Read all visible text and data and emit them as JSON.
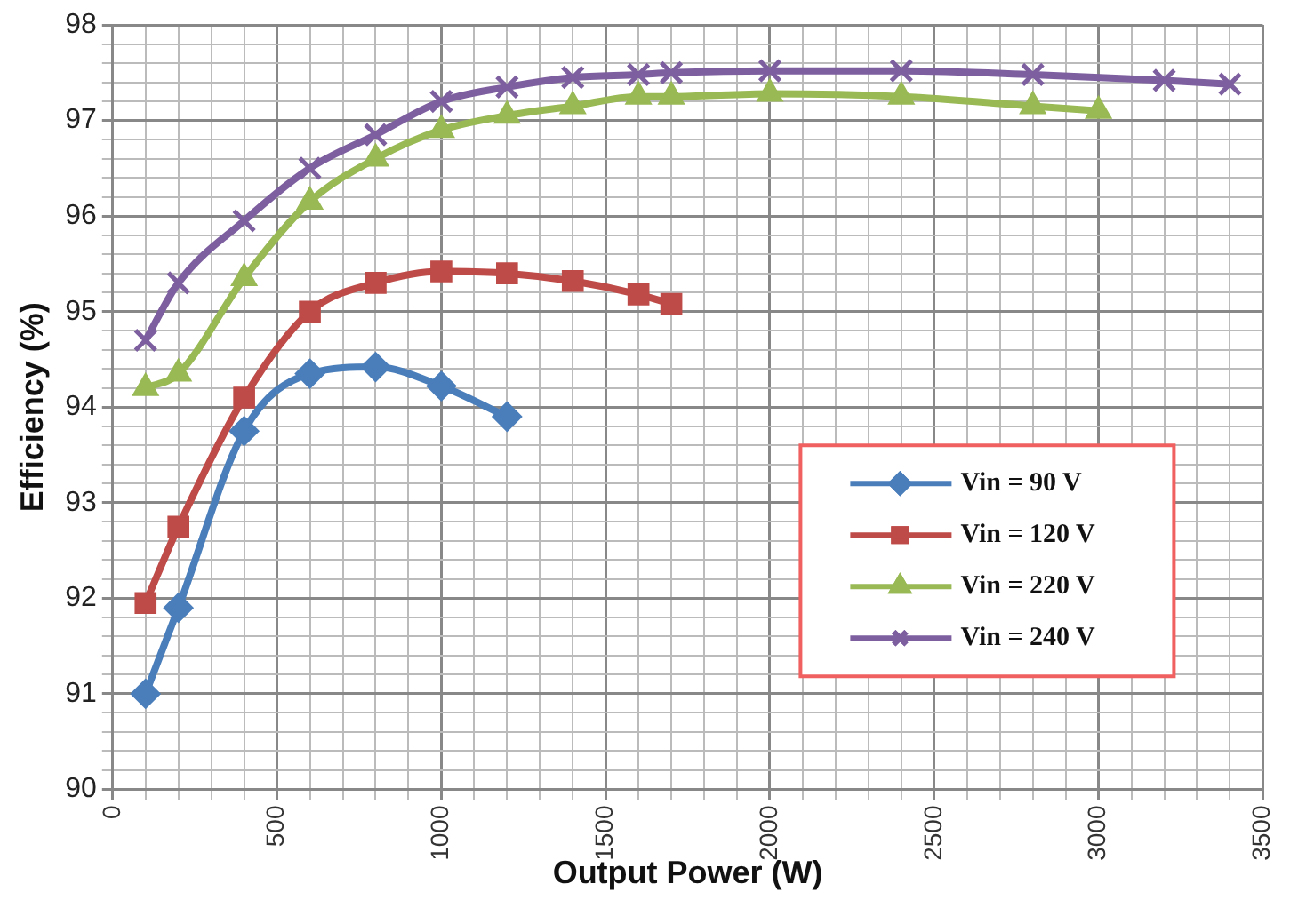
{
  "chart_data": {
    "type": "line",
    "xlabel": "Output Power (W)",
    "ylabel": "Efficiency (%)",
    "xlim": [
      0,
      3500
    ],
    "xticks": [
      0,
      {
        "value": 100,
        "label": null
      },
      {
        "value": 200,
        "label": null
      },
      {
        "value": 300,
        "label": null
      },
      {
        "value": 400,
        "label": null
      },
      500,
      {
        "value": 600,
        "label": null
      },
      {
        "value": 700,
        "label": null
      },
      {
        "value": 800,
        "label": null
      },
      {
        "value": 900,
        "label": null
      },
      1000,
      {
        "value": 1100,
        "label": null
      },
      {
        "value": 1200,
        "label": null
      },
      {
        "value": 1300,
        "label": null
      },
      {
        "value": 1400,
        "label": null
      },
      1500,
      {
        "value": 1600,
        "label": null
      },
      {
        "value": 1700,
        "label": null
      },
      {
        "value": 1800,
        "label": null
      },
      {
        "value": 1900,
        "label": null
      },
      2000,
      {
        "value": 2100,
        "label": null
      },
      {
        "value": 2200,
        "label": null
      },
      {
        "value": 2300,
        "label": null
      },
      {
        "value": 2400,
        "label": null
      },
      2500,
      {
        "value": 2600,
        "label": null
      },
      {
        "value": 2700,
        "label": null
      },
      {
        "value": 2800,
        "label": null
      },
      {
        "value": 2900,
        "label": null
      },
      3000,
      {
        "value": 3100,
        "label": null
      },
      {
        "value": 3200,
        "label": null
      },
      {
        "value": 3300,
        "label": null
      },
      {
        "value": 3400,
        "label": null
      },
      3500
    ],
    "ylim": [
      90,
      98
    ],
    "yticks": [
      90,
      {
        "value": 90.2,
        "label": null
      },
      {
        "value": 90.4,
        "label": null
      },
      {
        "value": 90.6,
        "label": null
      },
      {
        "value": 90.8,
        "label": null
      },
      91,
      {
        "value": 91.2,
        "label": null
      },
      {
        "value": 91.4,
        "label": null
      },
      {
        "value": 91.6,
        "label": null
      },
      {
        "value": 91.8,
        "label": null
      },
      92,
      {
        "value": 92.2,
        "label": null
      },
      {
        "value": 92.4,
        "label": null
      },
      {
        "value": 92.6,
        "label": null
      },
      {
        "value": 92.8,
        "label": null
      },
      93,
      {
        "value": 93.2,
        "label": null
      },
      {
        "value": 93.4,
        "label": null
      },
      {
        "value": 93.6,
        "label": null
      },
      {
        "value": 93.8,
        "label": null
      },
      94,
      {
        "value": 94.2,
        "label": null
      },
      {
        "value": 94.4,
        "label": null
      },
      {
        "value": 94.6,
        "label": null
      },
      {
        "value": 94.8,
        "label": null
      },
      95,
      {
        "value": 95.2,
        "label": null
      },
      {
        "value": 95.4,
        "label": null
      },
      {
        "value": 95.6,
        "label": null
      },
      {
        "value": 95.8,
        "label": null
      },
      96,
      {
        "value": 96.2,
        "label": null
      },
      {
        "value": 96.4,
        "label": null
      },
      {
        "value": 96.6,
        "label": null
      },
      {
        "value": 96.8,
        "label": null
      },
      97,
      {
        "value": 97.2,
        "label": null
      },
      {
        "value": 97.4,
        "label": null
      },
      {
        "value": 97.6,
        "label": null
      },
      {
        "value": 97.8,
        "label": null
      },
      98
    ],
    "grid": true,
    "legend": "right",
    "line_style": "solid",
    "series": [
      {
        "name": "Vin = 90 V",
        "color": "#4a7ebb",
        "marker": "diamond",
        "x": [
          100,
          200,
          400,
          600,
          800,
          1000,
          1200
        ],
        "values": [
          91.0,
          91.9,
          93.75,
          94.35,
          94.42,
          94.22,
          93.9
        ]
      },
      {
        "name": "Vin = 120 V",
        "color": "#be4b48",
        "marker": "square",
        "x": [
          100,
          200,
          400,
          600,
          800,
          1000,
          1200,
          1400,
          1600,
          1700
        ],
        "values": [
          91.95,
          92.75,
          94.1,
          95.0,
          95.3,
          95.42,
          95.4,
          95.32,
          95.18,
          95.08
        ]
      },
      {
        "name": "Vin = 220 V",
        "color": "#98b954",
        "marker": "triangle",
        "x": [
          100,
          200,
          400,
          600,
          800,
          1000,
          1200,
          1400,
          1600,
          1700,
          2000,
          2400,
          2800,
          3000
        ],
        "values": [
          94.2,
          94.35,
          95.35,
          96.15,
          96.6,
          96.9,
          97.05,
          97.15,
          97.25,
          97.25,
          97.28,
          97.25,
          97.15,
          97.1
        ]
      },
      {
        "name": "Vin = 240 V",
        "color": "#7d5fa0",
        "marker": "cross",
        "x": [
          100,
          200,
          400,
          600,
          800,
          1000,
          1200,
          1400,
          1600,
          1700,
          2000,
          2400,
          2800,
          3200,
          3400
        ],
        "values": [
          94.7,
          95.3,
          95.95,
          96.5,
          96.85,
          97.2,
          97.35,
          97.45,
          97.48,
          97.5,
          97.52,
          97.52,
          97.48,
          97.42,
          97.38
        ]
      }
    ]
  }
}
